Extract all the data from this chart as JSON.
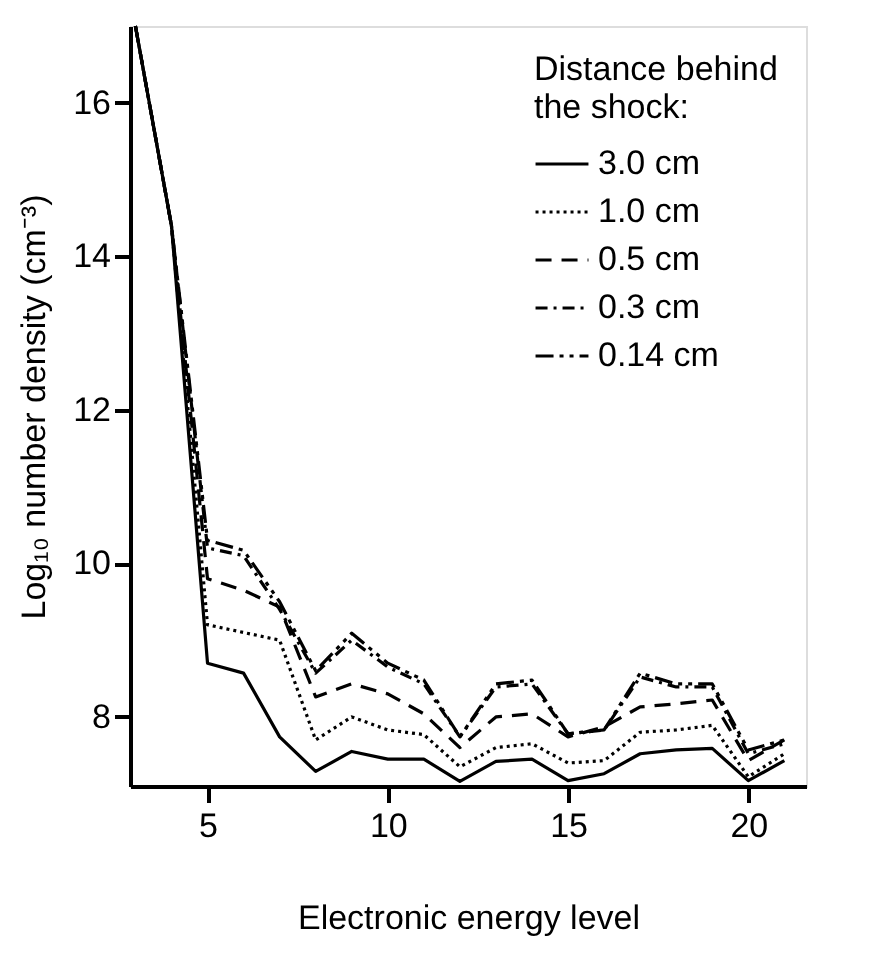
{
  "chart_data": {
    "type": "line",
    "xlabel": "Electronic energy level",
    "ylabel": "Log₁₀ number density (cm⁻³)",
    "legend_title": "Distance behind\nthe shock:",
    "legend": "top right",
    "x": [
      3,
      4,
      5,
      6,
      7,
      8,
      9,
      10,
      11,
      12,
      13,
      14,
      15,
      16,
      17,
      18,
      19,
      20,
      21
    ],
    "xlim": [
      2.85,
      21.6
    ],
    "xticks": [
      5,
      10,
      15,
      20
    ],
    "ylim": [
      7.1,
      17
    ],
    "yticks": [
      8,
      10,
      12,
      14,
      16
    ],
    "grid": false,
    "marker": "none",
    "series": [
      {
        "name": "3.0 cm",
        "color": "#000000",
        "line_style": "solid",
        "values": [
          17,
          14.4,
          8.7,
          8.57,
          7.74,
          7.29,
          7.55,
          7.45,
          7.45,
          7.16,
          7.42,
          7.45,
          7.17,
          7.26,
          7.52,
          7.57,
          7.59,
          7.17,
          7.43
        ]
      },
      {
        "name": "1.0 cm",
        "color": "#000000",
        "line_style": "dotted",
        "values": [
          17,
          14.4,
          9.2,
          9.1,
          9.0,
          7.7,
          8.0,
          7.83,
          7.77,
          7.35,
          7.6,
          7.65,
          7.4,
          7.43,
          7.8,
          7.83,
          7.89,
          7.22,
          7.52
        ]
      },
      {
        "name": "0.5 cm",
        "color": "#000000",
        "line_style": "dashed",
        "values": [
          17,
          14.4,
          9.8,
          9.65,
          9.43,
          8.26,
          8.43,
          8.3,
          8.04,
          7.6,
          8.0,
          8.04,
          7.74,
          7.87,
          8.13,
          8.17,
          8.22,
          7.43,
          7.7
        ]
      },
      {
        "name": "0.3 cm",
        "color": "#000000",
        "line_style": "dashdot",
        "values": [
          17,
          14.4,
          10.2,
          10.1,
          9.4,
          8.57,
          9.0,
          8.65,
          8.43,
          7.74,
          8.39,
          8.43,
          7.78,
          7.83,
          8.52,
          8.39,
          8.39,
          7.52,
          7.65
        ]
      },
      {
        "name": "0.14 cm",
        "color": "#000000",
        "line_style": "longdashdot",
        "values": [
          17,
          14.4,
          10.3,
          10.17,
          9.5,
          8.6,
          9.09,
          8.7,
          8.48,
          7.74,
          8.43,
          8.48,
          7.78,
          7.83,
          8.57,
          8.43,
          8.43,
          7.57,
          7.7
        ]
      }
    ]
  }
}
